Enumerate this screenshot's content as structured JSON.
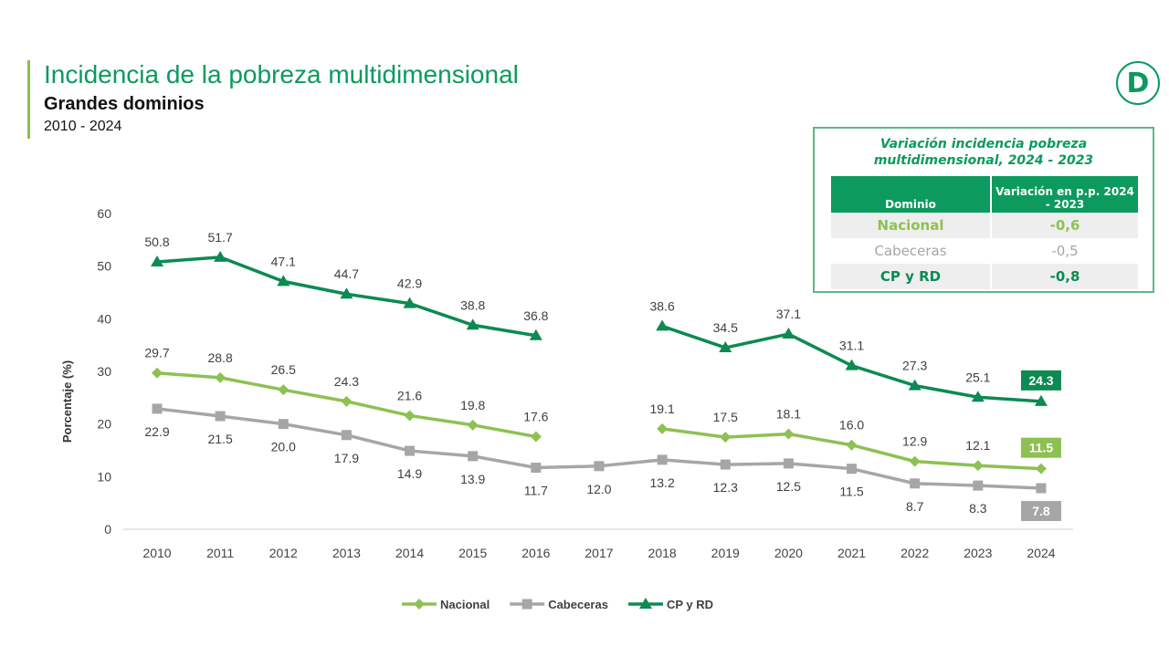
{
  "header": {
    "title": "Incidencia de la pobreza multidimensional",
    "subtitle": "Grandes dominios",
    "period": "2010 - 2024",
    "logo": "D"
  },
  "summary_table": {
    "title": "Variación incidencia pobreza multidimensional, 2024 - 2023",
    "headers": [
      "Dominio",
      "Variación en p.p. 2024 - 2023"
    ],
    "rows": [
      {
        "domain": "Nacional",
        "value": "-0,6",
        "color": "#8dc152"
      },
      {
        "domain": "Cabeceras",
        "value": "-0,5",
        "color": "#a6a6a6"
      },
      {
        "domain": "CP y RD",
        "value": "-0,8",
        "color": "#0c8a52"
      }
    ]
  },
  "chart_data": {
    "type": "line",
    "ylabel": "Porcentaje (%)",
    "ylim": [
      0,
      60
    ],
    "yticks": [
      0,
      10,
      20,
      30,
      40,
      50,
      60
    ],
    "x": [
      2010,
      2011,
      2012,
      2013,
      2014,
      2015,
      2016,
      2017,
      2018,
      2019,
      2020,
      2021,
      2022,
      2023,
      2024
    ],
    "legend": "bottom",
    "series": [
      {
        "name": "Nacional",
        "color": "#8dc152",
        "marker": "diamond",
        "values": [
          29.7,
          28.8,
          26.5,
          24.3,
          21.6,
          19.8,
          17.6,
          null,
          19.1,
          17.5,
          18.1,
          16.0,
          12.9,
          12.1,
          11.5
        ]
      },
      {
        "name": "Cabeceras",
        "color": "#a6a6a6",
        "marker": "square",
        "values": [
          22.9,
          21.5,
          20.0,
          17.9,
          14.9,
          13.9,
          11.7,
          12.0,
          13.2,
          12.3,
          12.5,
          11.5,
          8.7,
          8.3,
          7.8
        ]
      },
      {
        "name": "CP y RD",
        "color": "#0c8a52",
        "marker": "triangle",
        "values": [
          50.8,
          51.7,
          47.1,
          44.7,
          42.9,
          38.8,
          36.8,
          null,
          38.6,
          34.5,
          37.1,
          31.1,
          27.3,
          25.1,
          24.3
        ]
      }
    ]
  }
}
